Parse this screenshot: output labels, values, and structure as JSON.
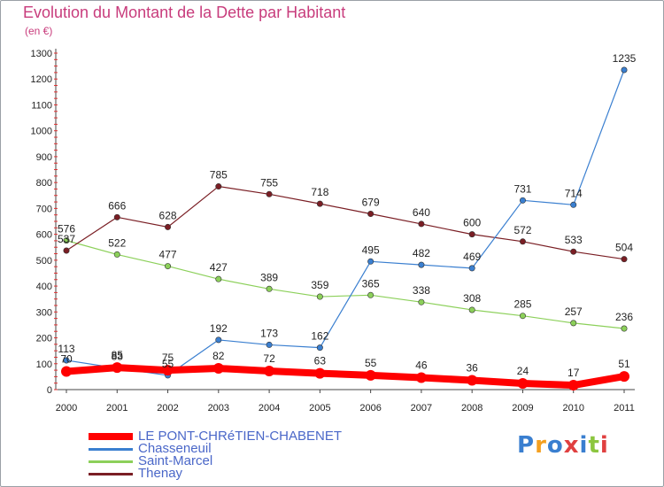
{
  "header": {
    "title": "Evolution du Montant de la Dette par Habitant",
    "subtitle": "(en €)"
  },
  "logo": {
    "text": "Proxiti",
    "colors": [
      "#3a7fd0",
      "#f4a020",
      "#3a7fd0",
      "#e04040",
      "#3a7fd0",
      "#8cc63f",
      "#e04040"
    ]
  },
  "chart_data": {
    "type": "line",
    "x": [
      "2000",
      "2001",
      "2002",
      "2003",
      "2004",
      "2005",
      "2006",
      "2007",
      "2008",
      "2009",
      "2010",
      "2011"
    ],
    "ylim": [
      0,
      1300
    ],
    "yticks": [
      0,
      100,
      200,
      300,
      400,
      500,
      600,
      700,
      800,
      900,
      1000,
      1100,
      1200,
      1300
    ],
    "grid": false,
    "legend_position": "bottom-left",
    "series": [
      {
        "name": "LE PONT-CHRéTIEN-CHABENET",
        "color": "#ff0000",
        "values": [
          70,
          85,
          75,
          82,
          72,
          63,
          55,
          46,
          36,
          24,
          17,
          51
        ],
        "labels": [
          "70",
          "85",
          "75",
          "82",
          "72",
          "63",
          "55",
          "46",
          "36",
          "24",
          "17",
          "51"
        ]
      },
      {
        "name": "Chasseneuil",
        "color": "#3a7fd0",
        "values": [
          113,
          83,
          55,
          192,
          173,
          162,
          495,
          482,
          469,
          731,
          714,
          1235
        ],
        "labels": [
          "113",
          "83",
          "55",
          "192",
          "173",
          "162",
          "495",
          "482",
          "469",
          "731",
          "714",
          "1235"
        ]
      },
      {
        "name": "Saint-Marcel",
        "color": "#8cd05a",
        "values": [
          576,
          522,
          477,
          427,
          389,
          359,
          365,
          338,
          308,
          285,
          257,
          236
        ],
        "labels": [
          "576",
          "522",
          "477",
          "427",
          "389",
          "359",
          "365",
          "338",
          "308",
          "285",
          "257",
          "236"
        ]
      },
      {
        "name": "Thenay",
        "color": "#7a1e24",
        "values": [
          537,
          666,
          628,
          785,
          755,
          718,
          679,
          640,
          600,
          572,
          533,
          504
        ],
        "labels": [
          "537",
          "666",
          "628",
          "785",
          "755",
          "718",
          "679",
          "640",
          "600",
          "572",
          "533",
          "504"
        ]
      }
    ]
  }
}
